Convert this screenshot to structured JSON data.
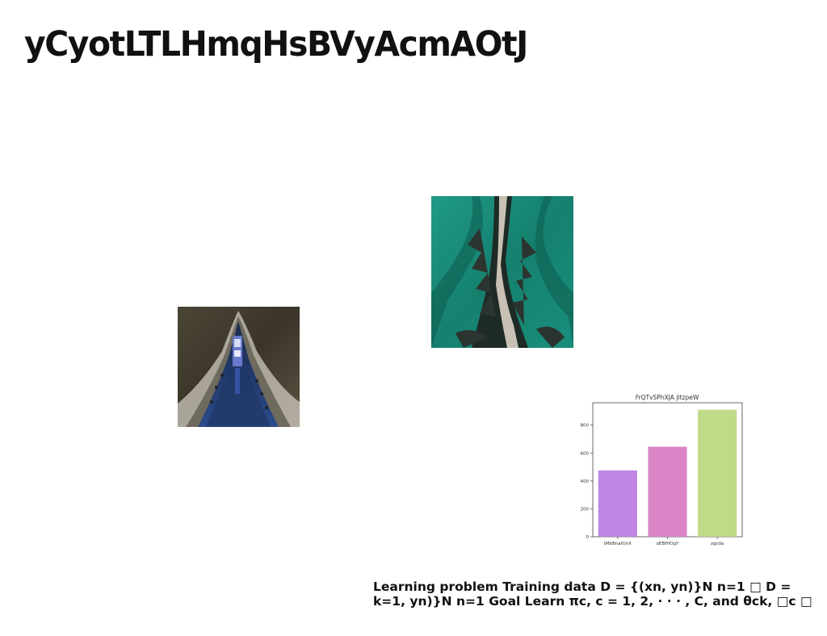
{
  "title": "yCyotLTLHmqHsBVyAcmAOtJ",
  "images": {
    "river_boat": "aerial photo of boat in dark river channel",
    "green_ridge": "aerial photo of road along teal mountain ridge"
  },
  "chart_data": {
    "type": "bar",
    "title": "FrQTvSPhXJA JitzpeW",
    "categories": [
      "tMbBnafUnX",
      "oEBfHOgY",
      "zgcda"
    ],
    "values": [
      475,
      645,
      910
    ],
    "colors": [
      "#bf84e4",
      "#da86c6",
      "#c1da88"
    ],
    "ylim": [
      0,
      960
    ],
    "yticks": [
      0,
      200,
      400,
      600,
      800
    ],
    "xlabel": "",
    "ylabel": ""
  },
  "caption": {
    "line1": "Learning problem Training data D = {(xn, yn)}N n=1 □ D =",
    "line2": "k=1, yn)}N n=1 Goal Learn πc, c = 1, 2, · · · , C, and θck, □c □"
  }
}
